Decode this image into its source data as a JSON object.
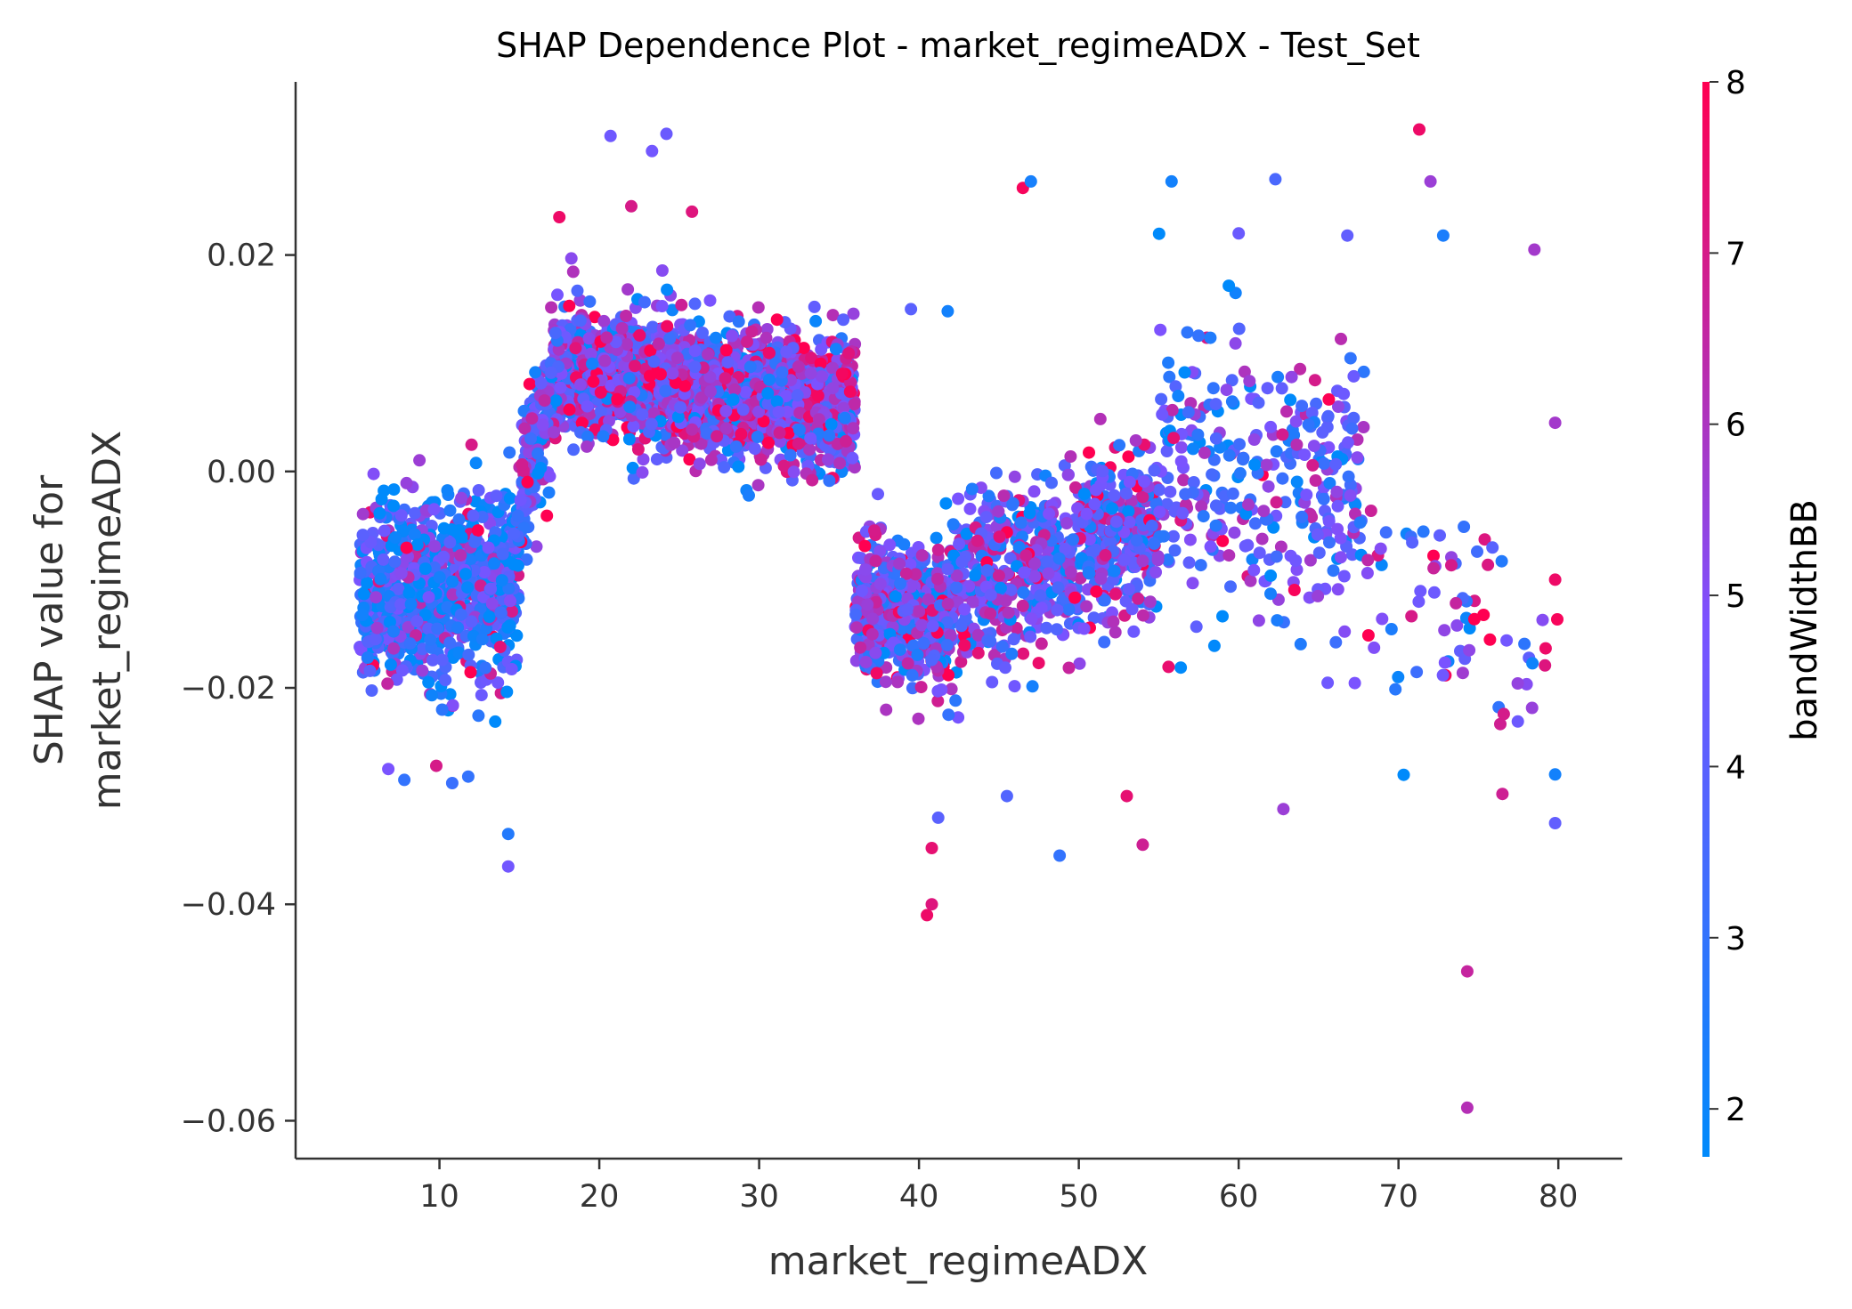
{
  "chart_data": {
    "type": "scatter",
    "title": "SHAP Dependence Plot - market_regimeADX - Test_Set",
    "xlabel": "market_regimeADX",
    "ylabel_line1": "SHAP value for",
    "ylabel_line2": "market_regimeADX",
    "colorbar_label": "bandWidthBB",
    "xlim": [
      1,
      84
    ],
    "ylim": [
      -0.0635,
      0.036
    ],
    "x_ticks": [
      10,
      20,
      30,
      40,
      50,
      60,
      70,
      80
    ],
    "x_tick_labels": [
      "10",
      "20",
      "30",
      "40",
      "50",
      "60",
      "70",
      "80"
    ],
    "y_ticks": [
      0.02,
      0.0,
      -0.02,
      -0.04,
      -0.06
    ],
    "y_tick_labels": [
      "0.02",
      "0.00",
      "−0.02",
      "−0.04",
      "−0.06"
    ],
    "color_range": [
      1.72,
      8.0
    ],
    "colorbar_ticks": [
      2,
      3,
      4,
      5,
      6,
      7,
      8
    ],
    "colorbar_tick_labels": [
      "2",
      "3",
      "4",
      "5",
      "6",
      "7",
      "8"
    ],
    "colormap": [
      "#008afb",
      "#7c52ff",
      "#ff0051"
    ],
    "notable_points": [
      {
        "x": 20.7,
        "y": 0.031,
        "c": 4.5
      },
      {
        "x": 23.3,
        "y": 0.0296,
        "c": 4.6
      },
      {
        "x": 24.2,
        "y": 0.0312,
        "c": 4.4
      },
      {
        "x": 22.0,
        "y": 0.0245,
        "c": 7.0
      },
      {
        "x": 25.8,
        "y": 0.024,
        "c": 7.2
      },
      {
        "x": 17.5,
        "y": 0.0235,
        "c": 7.6
      },
      {
        "x": 46.5,
        "y": 0.0262,
        "c": 7.8
      },
      {
        "x": 47.0,
        "y": 0.0268,
        "c": 2.3
      },
      {
        "x": 55.8,
        "y": 0.0268,
        "c": 2.2
      },
      {
        "x": 62.3,
        "y": 0.027,
        "c": 3.6
      },
      {
        "x": 71.3,
        "y": 0.0316,
        "c": 7.6
      },
      {
        "x": 72.0,
        "y": 0.0268,
        "c": 5.6
      },
      {
        "x": 72.8,
        "y": 0.0218,
        "c": 2.4
      },
      {
        "x": 78.5,
        "y": 0.0205,
        "c": 5.8
      },
      {
        "x": 60.0,
        "y": 0.022,
        "c": 4.4
      },
      {
        "x": 66.8,
        "y": 0.0218,
        "c": 4.2
      },
      {
        "x": 39.5,
        "y": 0.015,
        "c": 4.0
      },
      {
        "x": 41.8,
        "y": 0.0148,
        "c": 2.2
      },
      {
        "x": 14.3,
        "y": -0.0365,
        "c": 4.6
      },
      {
        "x": 14.3,
        "y": -0.0335,
        "c": 2.6
      },
      {
        "x": 7.8,
        "y": -0.0285,
        "c": 3.0
      },
      {
        "x": 6.8,
        "y": -0.0275,
        "c": 4.8
      },
      {
        "x": 10.8,
        "y": -0.0288,
        "c": 3.2
      },
      {
        "x": 11.8,
        "y": -0.0282,
        "c": 3.0
      },
      {
        "x": 9.8,
        "y": -0.0272,
        "c": 7.0
      },
      {
        "x": 40.5,
        "y": -0.041,
        "c": 7.6
      },
      {
        "x": 40.8,
        "y": -0.04,
        "c": 7.2
      },
      {
        "x": 40.8,
        "y": -0.0348,
        "c": 7.4
      },
      {
        "x": 41.2,
        "y": -0.032,
        "c": 4.0
      },
      {
        "x": 45.5,
        "y": -0.03,
        "c": 3.8
      },
      {
        "x": 48.8,
        "y": -0.0355,
        "c": 3.0
      },
      {
        "x": 54.0,
        "y": -0.0345,
        "c": 6.8
      },
      {
        "x": 53.0,
        "y": -0.03,
        "c": 7.4
      },
      {
        "x": 62.8,
        "y": -0.0312,
        "c": 5.6
      },
      {
        "x": 74.3,
        "y": -0.0462,
        "c": 6.6
      },
      {
        "x": 74.3,
        "y": -0.0588,
        "c": 6.2
      },
      {
        "x": 79.8,
        "y": -0.0325,
        "c": 4.2
      },
      {
        "x": 79.8,
        "y": -0.028,
        "c": 2.2
      },
      {
        "x": 79.8,
        "y": -0.01,
        "c": 7.6
      },
      {
        "x": 79.8,
        "y": 0.0045,
        "c": 5.8
      },
      {
        "x": 76.5,
        "y": -0.0298,
        "c": 6.8
      }
    ],
    "point_clusters": [
      {
        "x_range": [
          5,
          15
        ],
        "y_center_start": -0.0115,
        "y_center_end": -0.01,
        "y_spread": 0.0075,
        "count": 900,
        "color_bias": 3.6
      },
      {
        "x_range": [
          15,
          17
        ],
        "y_center_start": -0.003,
        "y_center_end": 0.007,
        "y_spread": 0.0055,
        "count": 180,
        "color_bias": 4.6
      },
      {
        "x_range": [
          17,
          36
        ],
        "y_center_start": 0.0095,
        "y_center_end": 0.006,
        "y_spread": 0.0055,
        "count": 1700,
        "color_bias": 5.0
      },
      {
        "x_range": [
          36,
          42
        ],
        "y_center_start": -0.011,
        "y_center_end": -0.014,
        "y_spread": 0.006,
        "count": 500,
        "color_bias": 4.8
      },
      {
        "x_range": [
          42,
          55
        ],
        "y_center_start": -0.011,
        "y_center_end": -0.005,
        "y_spread": 0.007,
        "count": 750,
        "color_bias": 4.4
      },
      {
        "x_range": [
          55,
          68
        ],
        "y_center_start": -0.001,
        "y_center_end": -0.002,
        "y_spread": 0.012,
        "count": 320,
        "color_bias": 4.2
      },
      {
        "x_range": [
          68,
          80
        ],
        "y_center_start": -0.01,
        "y_center_end": -0.016,
        "y_spread": 0.009,
        "count": 70,
        "color_bias": 4.6
      }
    ]
  }
}
